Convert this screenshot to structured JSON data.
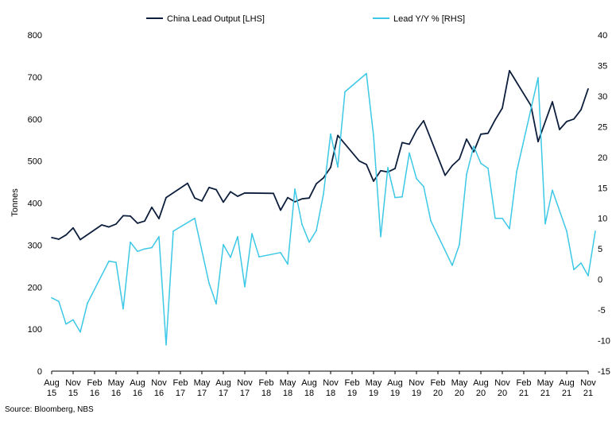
{
  "chart_data": {
    "type": "line",
    "ylabel": "Tonnes",
    "ylim_left": [
      0,
      800
    ],
    "ylim_right": [
      -15,
      40
    ],
    "left_ticks": [
      "0",
      "100",
      "200",
      "300",
      "400",
      "500",
      "600",
      "700",
      "800"
    ],
    "right_ticks": [
      "-15",
      "-10",
      "-5",
      "0",
      "5",
      "10",
      "15",
      "20",
      "25",
      "30",
      "35",
      "40"
    ],
    "x_tick_labels": [
      [
        "Aug",
        "15"
      ],
      [
        "Nov",
        "15"
      ],
      [
        "Feb",
        "16"
      ],
      [
        "May",
        "16"
      ],
      [
        "Aug",
        "16"
      ],
      [
        "Nov",
        "16"
      ],
      [
        "Feb",
        "17"
      ],
      [
        "May",
        "17"
      ],
      [
        "Aug",
        "17"
      ],
      [
        "Nov",
        "17"
      ],
      [
        "Feb",
        "18"
      ],
      [
        "May",
        "18"
      ],
      [
        "Aug",
        "18"
      ],
      [
        "Nov",
        "18"
      ],
      [
        "Feb",
        "19"
      ],
      [
        "May",
        "19"
      ],
      [
        "Aug",
        "19"
      ],
      [
        "Nov",
        "19"
      ],
      [
        "Feb",
        "20"
      ],
      [
        "May",
        "20"
      ],
      [
        "Aug",
        "20"
      ],
      [
        "Nov",
        "20"
      ],
      [
        "Feb",
        "21"
      ],
      [
        "May",
        "21"
      ],
      [
        "Aug",
        "21"
      ],
      [
        "Nov",
        "21"
      ]
    ],
    "legend_position": "top",
    "grid": false,
    "series": [
      {
        "name": "China Lead Output [LHS]",
        "axis": "left",
        "color": "#0d1f3c",
        "points": [
          [
            "2015-08",
            318
          ],
          [
            "2015-09",
            314
          ],
          [
            "2015-10",
            324
          ],
          [
            "2015-11",
            341
          ],
          [
            "2015-12",
            313
          ],
          [
            "2016-03",
            348
          ],
          [
            "2016-04",
            343
          ],
          [
            "2016-05",
            350
          ],
          [
            "2016-06",
            370
          ],
          [
            "2016-07",
            369
          ],
          [
            "2016-08",
            352
          ],
          [
            "2016-09",
            357
          ],
          [
            "2016-10",
            390
          ],
          [
            "2016-11",
            363
          ],
          [
            "2016-12",
            413
          ],
          [
            "2017-03",
            447
          ],
          [
            "2017-04",
            412
          ],
          [
            "2017-05",
            405
          ],
          [
            "2017-06",
            437
          ],
          [
            "2017-07",
            432
          ],
          [
            "2017-08",
            402
          ],
          [
            "2017-09",
            427
          ],
          [
            "2017-10",
            416
          ],
          [
            "2017-11",
            424
          ],
          [
            "2018-03",
            423
          ],
          [
            "2018-04",
            383
          ],
          [
            "2018-05",
            413
          ],
          [
            "2018-06",
            403
          ],
          [
            "2018-07",
            410
          ],
          [
            "2018-08",
            412
          ],
          [
            "2018-09",
            446
          ],
          [
            "2018-10",
            460
          ],
          [
            "2018-11",
            485
          ],
          [
            "2018-12",
            561
          ],
          [
            "2019-03",
            500
          ],
          [
            "2019-04",
            492
          ],
          [
            "2019-05",
            452
          ],
          [
            "2019-06",
            477
          ],
          [
            "2019-07",
            474
          ],
          [
            "2019-08",
            482
          ],
          [
            "2019-09",
            544
          ],
          [
            "2019-10",
            540
          ],
          [
            "2019-11",
            573
          ],
          [
            "2019-12",
            596
          ],
          [
            "2020-03",
            466
          ],
          [
            "2020-04",
            489
          ],
          [
            "2020-05",
            505
          ],
          [
            "2020-06",
            552
          ],
          [
            "2020-07",
            522
          ],
          [
            "2020-08",
            564
          ],
          [
            "2020-09",
            566
          ],
          [
            "2020-10",
            598
          ],
          [
            "2020-11",
            626
          ],
          [
            "2020-12",
            715
          ],
          [
            "2021-03",
            632
          ],
          [
            "2021-04",
            546
          ],
          [
            "2021-06",
            641
          ],
          [
            "2021-07",
            575
          ],
          [
            "2021-08",
            594
          ],
          [
            "2021-09",
            600
          ],
          [
            "2021-10",
            622
          ],
          [
            "2021-11",
            672
          ]
        ]
      },
      {
        "name": "Lead Y/Y % [RHS]",
        "axis": "right",
        "color": "#3cc8e6",
        "points": [
          [
            "2015-08",
            -3
          ],
          [
            "2015-09",
            -3.6
          ],
          [
            "2015-10",
            -7.3
          ],
          [
            "2015-11",
            -6.6
          ],
          [
            "2015-12",
            -8.6
          ],
          [
            "2016-01",
            -3.9
          ],
          [
            "2016-04",
            3
          ],
          [
            "2016-05",
            2.8
          ],
          [
            "2016-06",
            -4.8
          ],
          [
            "2016-07",
            6.1
          ],
          [
            "2016-08",
            4.6
          ],
          [
            "2016-09",
            5
          ],
          [
            "2016-10",
            5.2
          ],
          [
            "2016-11",
            7
          ],
          [
            "2016-12",
            -10.7
          ],
          [
            "2017-01",
            7.9
          ],
          [
            "2017-04",
            10
          ],
          [
            "2017-06",
            -0.6
          ],
          [
            "2017-07",
            -4
          ],
          [
            "2017-08",
            5.7
          ],
          [
            "2017-09",
            3.6
          ],
          [
            "2017-10",
            7
          ],
          [
            "2017-11",
            -1.2
          ],
          [
            "2017-12",
            7.5
          ],
          [
            "2018-01",
            3.7
          ],
          [
            "2018-04",
            4.4
          ],
          [
            "2018-05",
            2.5
          ],
          [
            "2018-06",
            14.8
          ],
          [
            "2018-07",
            9
          ],
          [
            "2018-08",
            6.1
          ],
          [
            "2018-09",
            8
          ],
          [
            "2018-10",
            14
          ],
          [
            "2018-11",
            23.8
          ],
          [
            "2018-12",
            18.4
          ],
          [
            "2019-01",
            30.7
          ],
          [
            "2019-04",
            33.7
          ],
          [
            "2019-05",
            23.5
          ],
          [
            "2019-06",
            7
          ],
          [
            "2019-07",
            18.3
          ],
          [
            "2019-08",
            13.4
          ],
          [
            "2019-09",
            13.5
          ],
          [
            "2019-10",
            20.7
          ],
          [
            "2019-11",
            16.5
          ],
          [
            "2019-12",
            15.2
          ],
          [
            "2020-01",
            9.6
          ],
          [
            "2020-04",
            2.3
          ],
          [
            "2020-05",
            5.7
          ],
          [
            "2020-06",
            17.2
          ],
          [
            "2020-07",
            21.8
          ],
          [
            "2020-08",
            19
          ],
          [
            "2020-09",
            18.2
          ],
          [
            "2020-10",
            10
          ],
          [
            "2020-11",
            10
          ],
          [
            "2020-12",
            8.3
          ],
          [
            "2021-01",
            17.6
          ],
          [
            "2021-04",
            33
          ],
          [
            "2021-05",
            9.1
          ],
          [
            "2021-06",
            14.6
          ],
          [
            "2021-08",
            7.9
          ],
          [
            "2021-09",
            1.6
          ],
          [
            "2021-10",
            2.7
          ],
          [
            "2021-11",
            0.6
          ],
          [
            "2021-12",
            7.9
          ]
        ]
      }
    ]
  },
  "source": "Source: Bloomberg, NBS"
}
